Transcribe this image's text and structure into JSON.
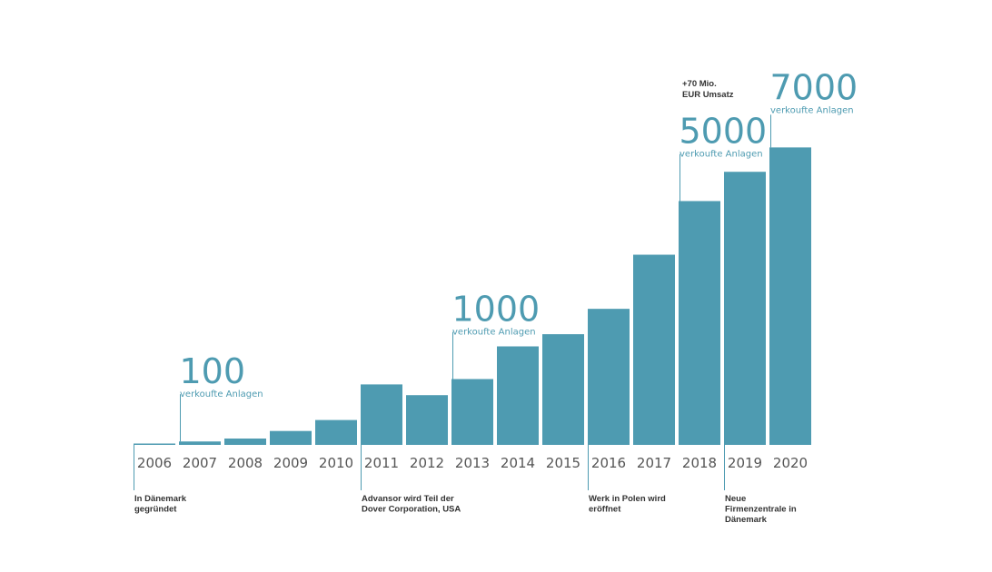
{
  "chart_data": {
    "type": "bar",
    "categories": [
      "2006",
      "2007",
      "2008",
      "2009",
      "2010",
      "2011",
      "2012",
      "2013",
      "2014",
      "2015",
      "2016",
      "2017",
      "2018",
      "2019",
      "2020"
    ],
    "values": [
      3,
      70,
      130,
      285,
      510,
      1240,
      1020,
      1350,
      2020,
      2270,
      2790,
      3900,
      5000,
      5600,
      6100
    ],
    "ylim": [
      0,
      6200
    ],
    "colors": {
      "bar": "#4e9bb1",
      "tick": "#555555",
      "event": "#333333"
    },
    "milestones": [
      {
        "category": "2007",
        "value": "100",
        "label": "verkoufte Anlagen"
      },
      {
        "category": "2013",
        "value": "1000",
        "label": "verkoufte Anlagen"
      },
      {
        "category": "2018",
        "value": "5000",
        "label": "verkoufte Anlagen"
      },
      {
        "category": "2020",
        "value": "7000",
        "label": "verkoufte Anlagen"
      }
    ],
    "note": {
      "category": "2018",
      "lines": [
        "+70 Mio.",
        "EUR Umsatz"
      ]
    },
    "events": [
      {
        "category": "2006",
        "lines": [
          "In Dänemark",
          "gegründet"
        ]
      },
      {
        "category": "2011",
        "lines": [
          "Advansor wird  Teil der",
          "Dover Corporation,  USA"
        ]
      },
      {
        "category": "2016",
        "lines": [
          "Werk in Polen wird",
          "eröffnet"
        ]
      },
      {
        "category": "2019",
        "lines": [
          "Neue",
          "Firmenzentrale  in",
          "Dänemark"
        ]
      }
    ]
  }
}
